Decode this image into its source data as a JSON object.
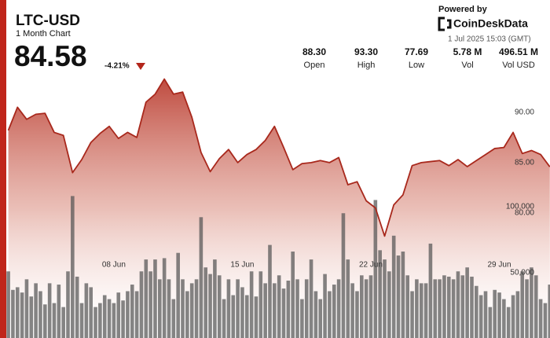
{
  "header": {
    "title": "LTC-USD",
    "subtitle": "1 Month Chart",
    "price": "84.58",
    "change": "-4.21%",
    "powered_by": "Powered by",
    "brand": "CoinDeskData",
    "timestamp": "1 Jul 2025 15:03 (GMT)",
    "stats": [
      {
        "value": "88.30",
        "label": "Open"
      },
      {
        "value": "93.30",
        "label": "High"
      },
      {
        "value": "77.69",
        "label": "Low"
      },
      {
        "value": "5.78 M",
        "label": "Vol"
      },
      {
        "value": "496.51 M",
        "label": "Vol USD"
      }
    ]
  },
  "chart_data": [
    {
      "type": "area",
      "color": "#a8281c",
      "xlim": [
        2.14,
        31.76
      ],
      "xticks": [
        {
          "value": 8,
          "label": "08 Jun"
        },
        {
          "value": 15,
          "label": "15 Jun"
        },
        {
          "value": 22,
          "label": "22 Jun"
        },
        {
          "value": 29,
          "label": "29 Jun"
        }
      ],
      "ylim": [
        67.5,
        91
      ],
      "yticks": [
        {
          "value": 80,
          "label": "80.00"
        },
        {
          "value": 85,
          "label": "85.00"
        },
        {
          "value": 90,
          "label": "90.00"
        }
      ],
      "x": [
        2.25,
        2.75,
        3.25,
        3.75,
        4.25,
        4.75,
        5.25,
        5.75,
        6.25,
        6.75,
        7.25,
        7.75,
        8.25,
        8.75,
        9.25,
        9.75,
        10.25,
        10.75,
        11.25,
        11.75,
        12.25,
        12.75,
        13.25,
        13.75,
        14.25,
        14.75,
        15.25,
        15.75,
        16.25,
        16.75,
        17.25,
        17.75,
        18.25,
        18.75,
        19.25,
        19.75,
        20.25,
        20.75,
        21.25,
        21.75,
        22.25,
        22.75,
        23.25,
        23.75,
        24.25,
        24.75,
        25.25,
        25.75,
        26.25,
        26.75,
        27.25,
        27.75,
        28.25,
        28.75,
        29.25,
        29.75,
        30.25,
        30.75,
        31.25,
        31.75
      ],
      "values": [
        88.2,
        90.5,
        89.3,
        89.8,
        89.9,
        88.0,
        87.7,
        84.0,
        85.3,
        87.0,
        87.9,
        88.6,
        87.4,
        88.0,
        87.5,
        91.0,
        91.8,
        93.3,
        91.8,
        92.0,
        89.5,
        86.0,
        84.1,
        85.4,
        86.3,
        85.0,
        85.8,
        86.3,
        87.2,
        88.6,
        86.5,
        84.3,
        84.9,
        85.0,
        85.2,
        85.0,
        85.5,
        82.8,
        83.1,
        81.2,
        80.5,
        77.7,
        80.8,
        81.8,
        84.7,
        85.0,
        85.1,
        85.2,
        84.7,
        85.3,
        84.6,
        85.2,
        85.8,
        86.4,
        86.5,
        88.0,
        85.9,
        86.2,
        85.8,
        84.58
      ]
    },
    {
      "type": "bar",
      "color": "#555555",
      "xlim": [
        2.14,
        31.76
      ],
      "ylim": [
        0,
        179000
      ],
      "yticks": [
        {
          "value": 50000,
          "label": "50,000"
        },
        {
          "value": 100000,
          "label": "100,000"
        }
      ],
      "x": [
        2.25,
        2.5,
        2.75,
        3,
        3.25,
        3.5,
        3.75,
        4,
        4.25,
        4.5,
        4.75,
        5,
        5.25,
        5.5,
        5.75,
        6,
        6.25,
        6.5,
        6.75,
        7,
        7.25,
        7.5,
        7.75,
        8,
        8.25,
        8.5,
        8.75,
        9,
        9.25,
        9.5,
        9.75,
        10,
        10.25,
        10.5,
        10.75,
        11,
        11.25,
        11.5,
        11.75,
        12,
        12.25,
        12.5,
        12.75,
        13,
        13.25,
        13.5,
        13.75,
        14,
        14.25,
        14.5,
        14.75,
        15,
        15.25,
        15.5,
        15.75,
        16,
        16.25,
        16.5,
        16.75,
        17,
        17.25,
        17.5,
        17.75,
        18,
        18.25,
        18.5,
        18.75,
        19,
        19.25,
        19.5,
        19.75,
        20,
        20.25,
        20.5,
        20.75,
        21,
        21.25,
        21.5,
        21.75,
        22,
        22.25,
        22.5,
        22.75,
        23,
        23.25,
        23.5,
        23.75,
        24,
        24.25,
        24.5,
        24.75,
        25,
        25.25,
        25.5,
        25.75,
        26,
        26.25,
        26.5,
        26.75,
        27,
        27.25,
        27.5,
        27.75,
        28,
        28.25,
        28.5,
        28.75,
        29,
        29.25,
        29.5,
        29.75,
        30,
        30.25,
        30.5,
        30.75,
        31,
        31.25,
        31.5,
        31.75
      ],
      "values": [
        51000,
        37000,
        39000,
        35000,
        45000,
        32000,
        42000,
        36000,
        26000,
        42000,
        27000,
        41000,
        24000,
        51000,
        108000,
        47000,
        27000,
        42000,
        39000,
        24000,
        27000,
        33000,
        30000,
        27000,
        35000,
        29000,
        36000,
        41000,
        36000,
        51000,
        60000,
        51000,
        60000,
        45000,
        61000,
        45000,
        30000,
        65000,
        45000,
        36000,
        42000,
        45000,
        92000,
        54000,
        49000,
        60000,
        48000,
        30000,
        45000,
        33000,
        45000,
        39000,
        33000,
        51000,
        32000,
        51000,
        42000,
        71000,
        42000,
        48000,
        38000,
        44000,
        66000,
        45000,
        30000,
        45000,
        60000,
        36000,
        30000,
        49000,
        36000,
        41000,
        45000,
        95000,
        60000,
        42000,
        36000,
        48000,
        45000,
        48000,
        105000,
        67000,
        60000,
        51000,
        78000,
        63000,
        66000,
        48000,
        36000,
        45000,
        42000,
        42000,
        72000,
        45000,
        45000,
        48000,
        47000,
        45000,
        51000,
        48000,
        54000,
        47000,
        40000,
        33000,
        36000,
        24000,
        37000,
        35000,
        30000,
        24000,
        33000,
        36000,
        51000,
        45000,
        54000,
        48000,
        30000,
        27000,
        41000
      ]
    }
  ]
}
